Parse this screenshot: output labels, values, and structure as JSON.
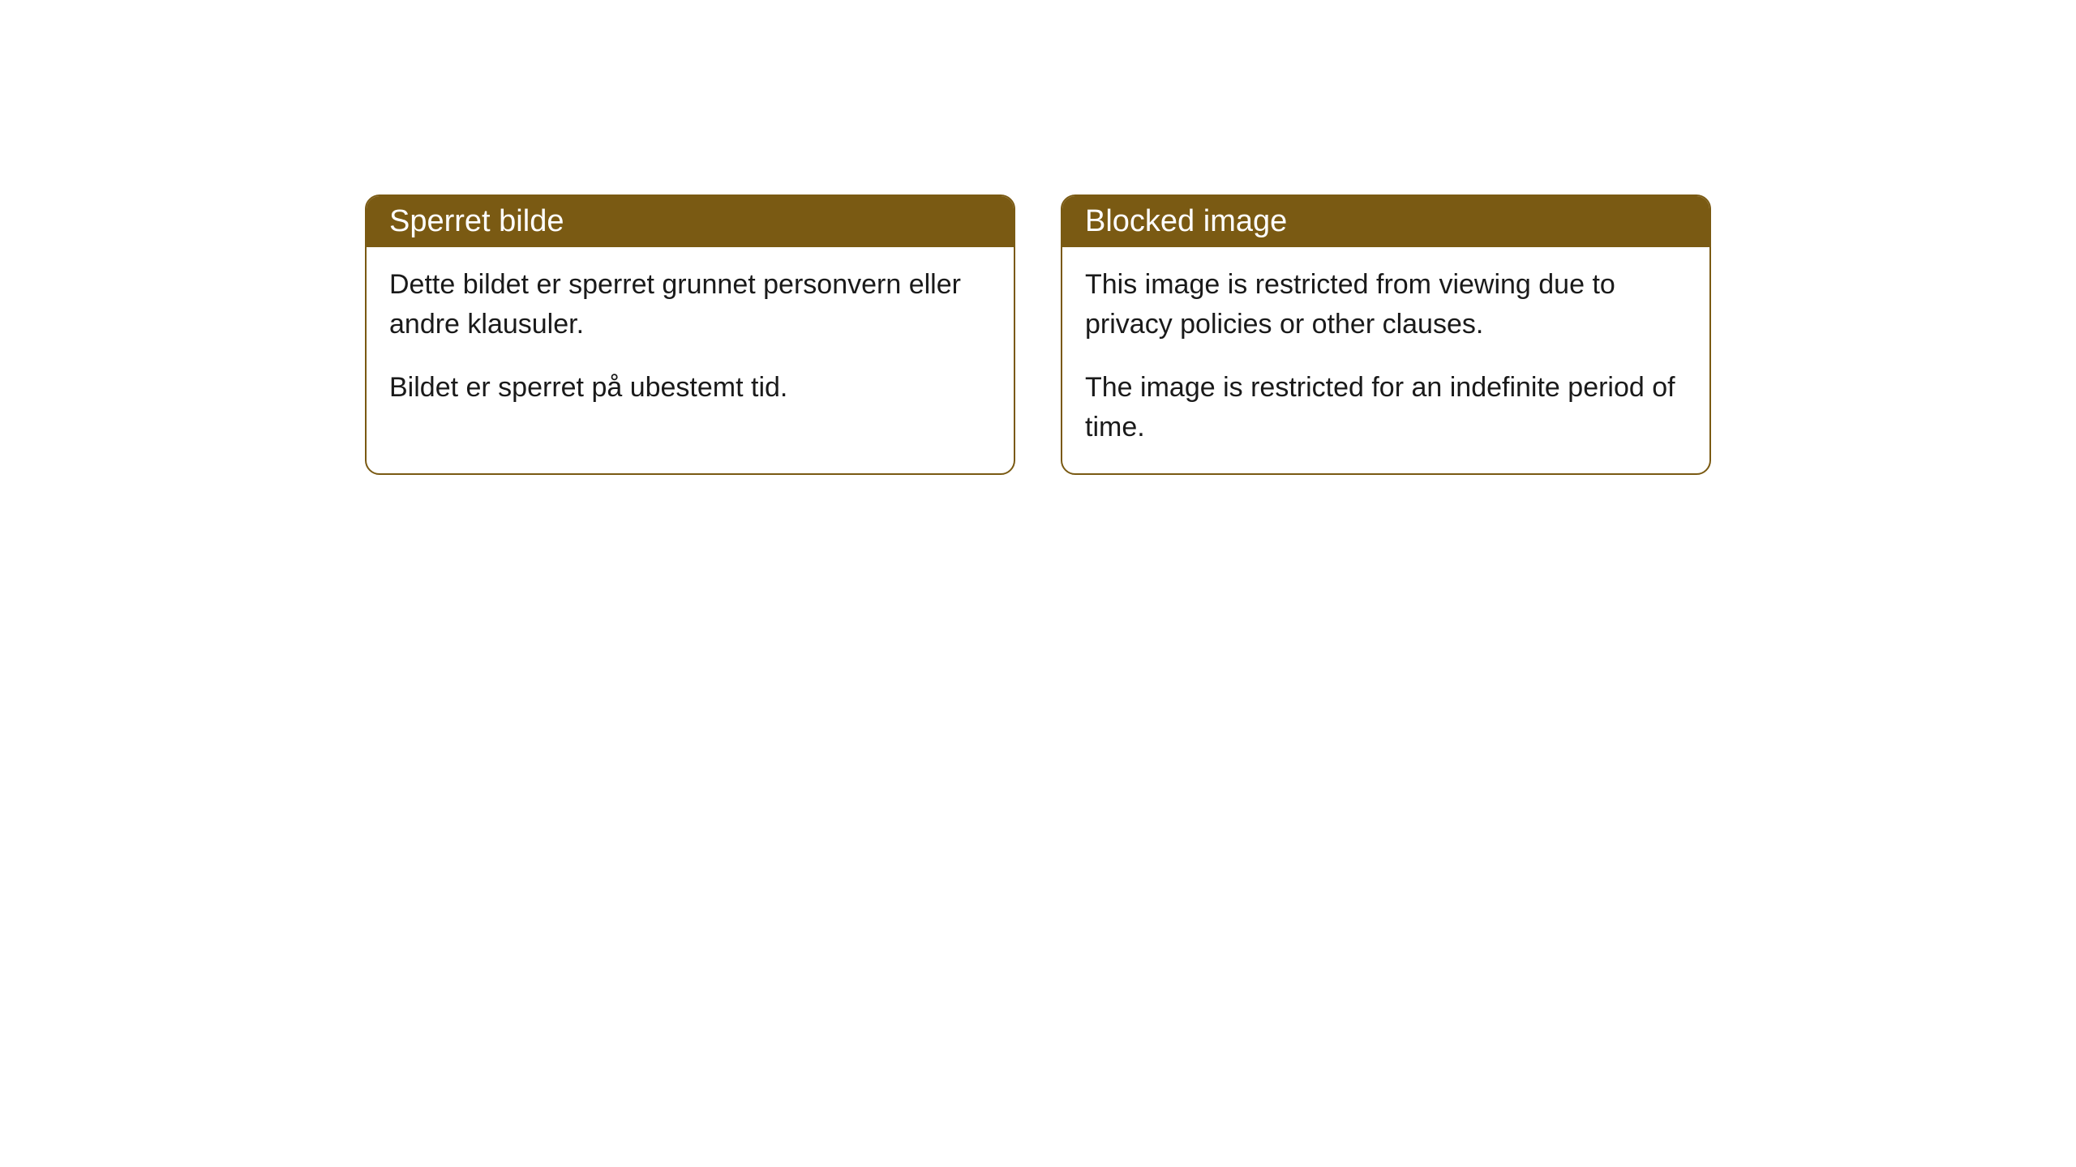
{
  "notices": [
    {
      "title": "Sperret bilde",
      "paragraph1": "Dette bildet er sperret grunnet personvern eller andre klausuler.",
      "paragraph2": "Bildet er sperret på ubestemt tid."
    },
    {
      "title": "Blocked image",
      "paragraph1": "This image is restricted from viewing due to privacy policies or other clauses.",
      "paragraph2": "The image is restricted for an indefinite period of time."
    }
  ],
  "styling": {
    "header_background": "#7a5a13",
    "header_text_color": "#ffffff",
    "border_color": "#7a5a13",
    "card_background": "#ffffff",
    "body_text_color": "#1a1a1a",
    "border_radius": 18,
    "header_fontsize": 38,
    "body_fontsize": 34
  }
}
